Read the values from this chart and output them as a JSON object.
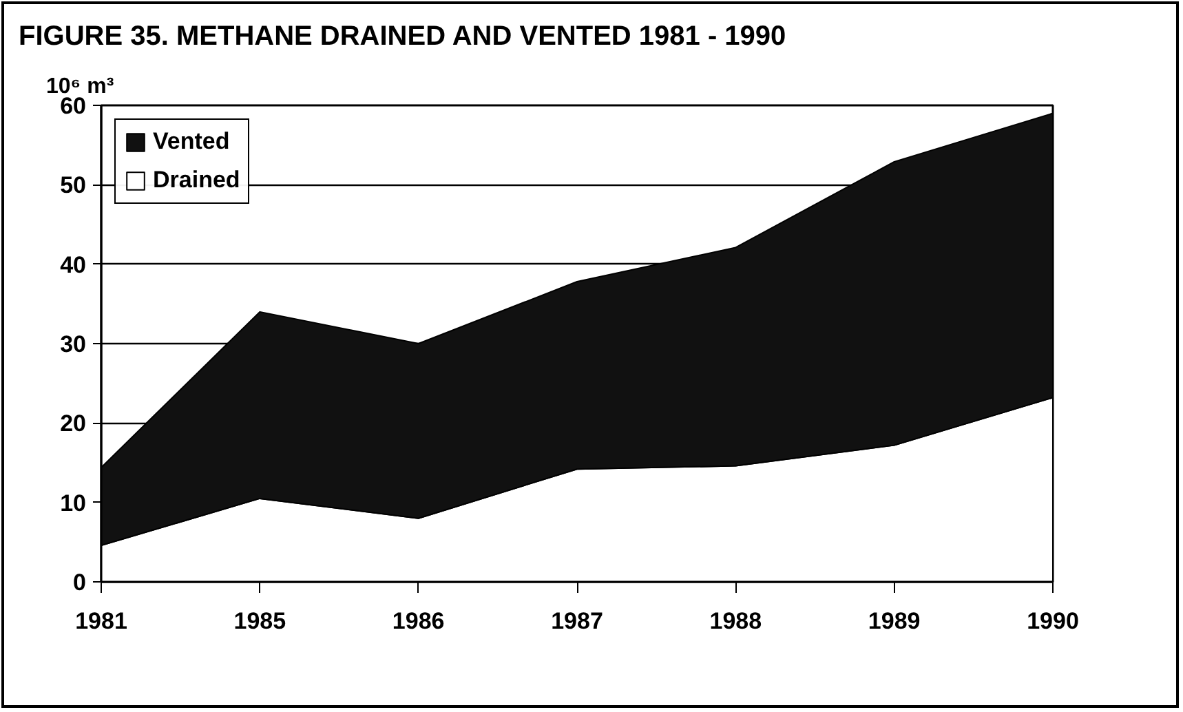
{
  "chart_data": {
    "type": "area",
    "title": "FIGURE 35.  METHANE DRAINED AND VENTED 1981 - 1990",
    "ylabel": "10⁶  m³",
    "categories": [
      "1981",
      "1985",
      "1986",
      "1987",
      "1988",
      "1989",
      "1990"
    ],
    "stacked": true,
    "series": [
      {
        "name": "Drained",
        "color": "#ffffff",
        "values": [
          4.6,
          10.5,
          8.0,
          14.2,
          14.6,
          17.2,
          23.2
        ]
      },
      {
        "name": "Vented",
        "color": "#111111",
        "values": [
          9.8,
          23.5,
          22.0,
          23.6,
          27.5,
          35.7,
          35.8
        ]
      }
    ],
    "ylim": [
      0,
      60
    ],
    "yticks": [
      0,
      10,
      20,
      30,
      40,
      50,
      60
    ],
    "grid": "y",
    "legend": "top left"
  }
}
